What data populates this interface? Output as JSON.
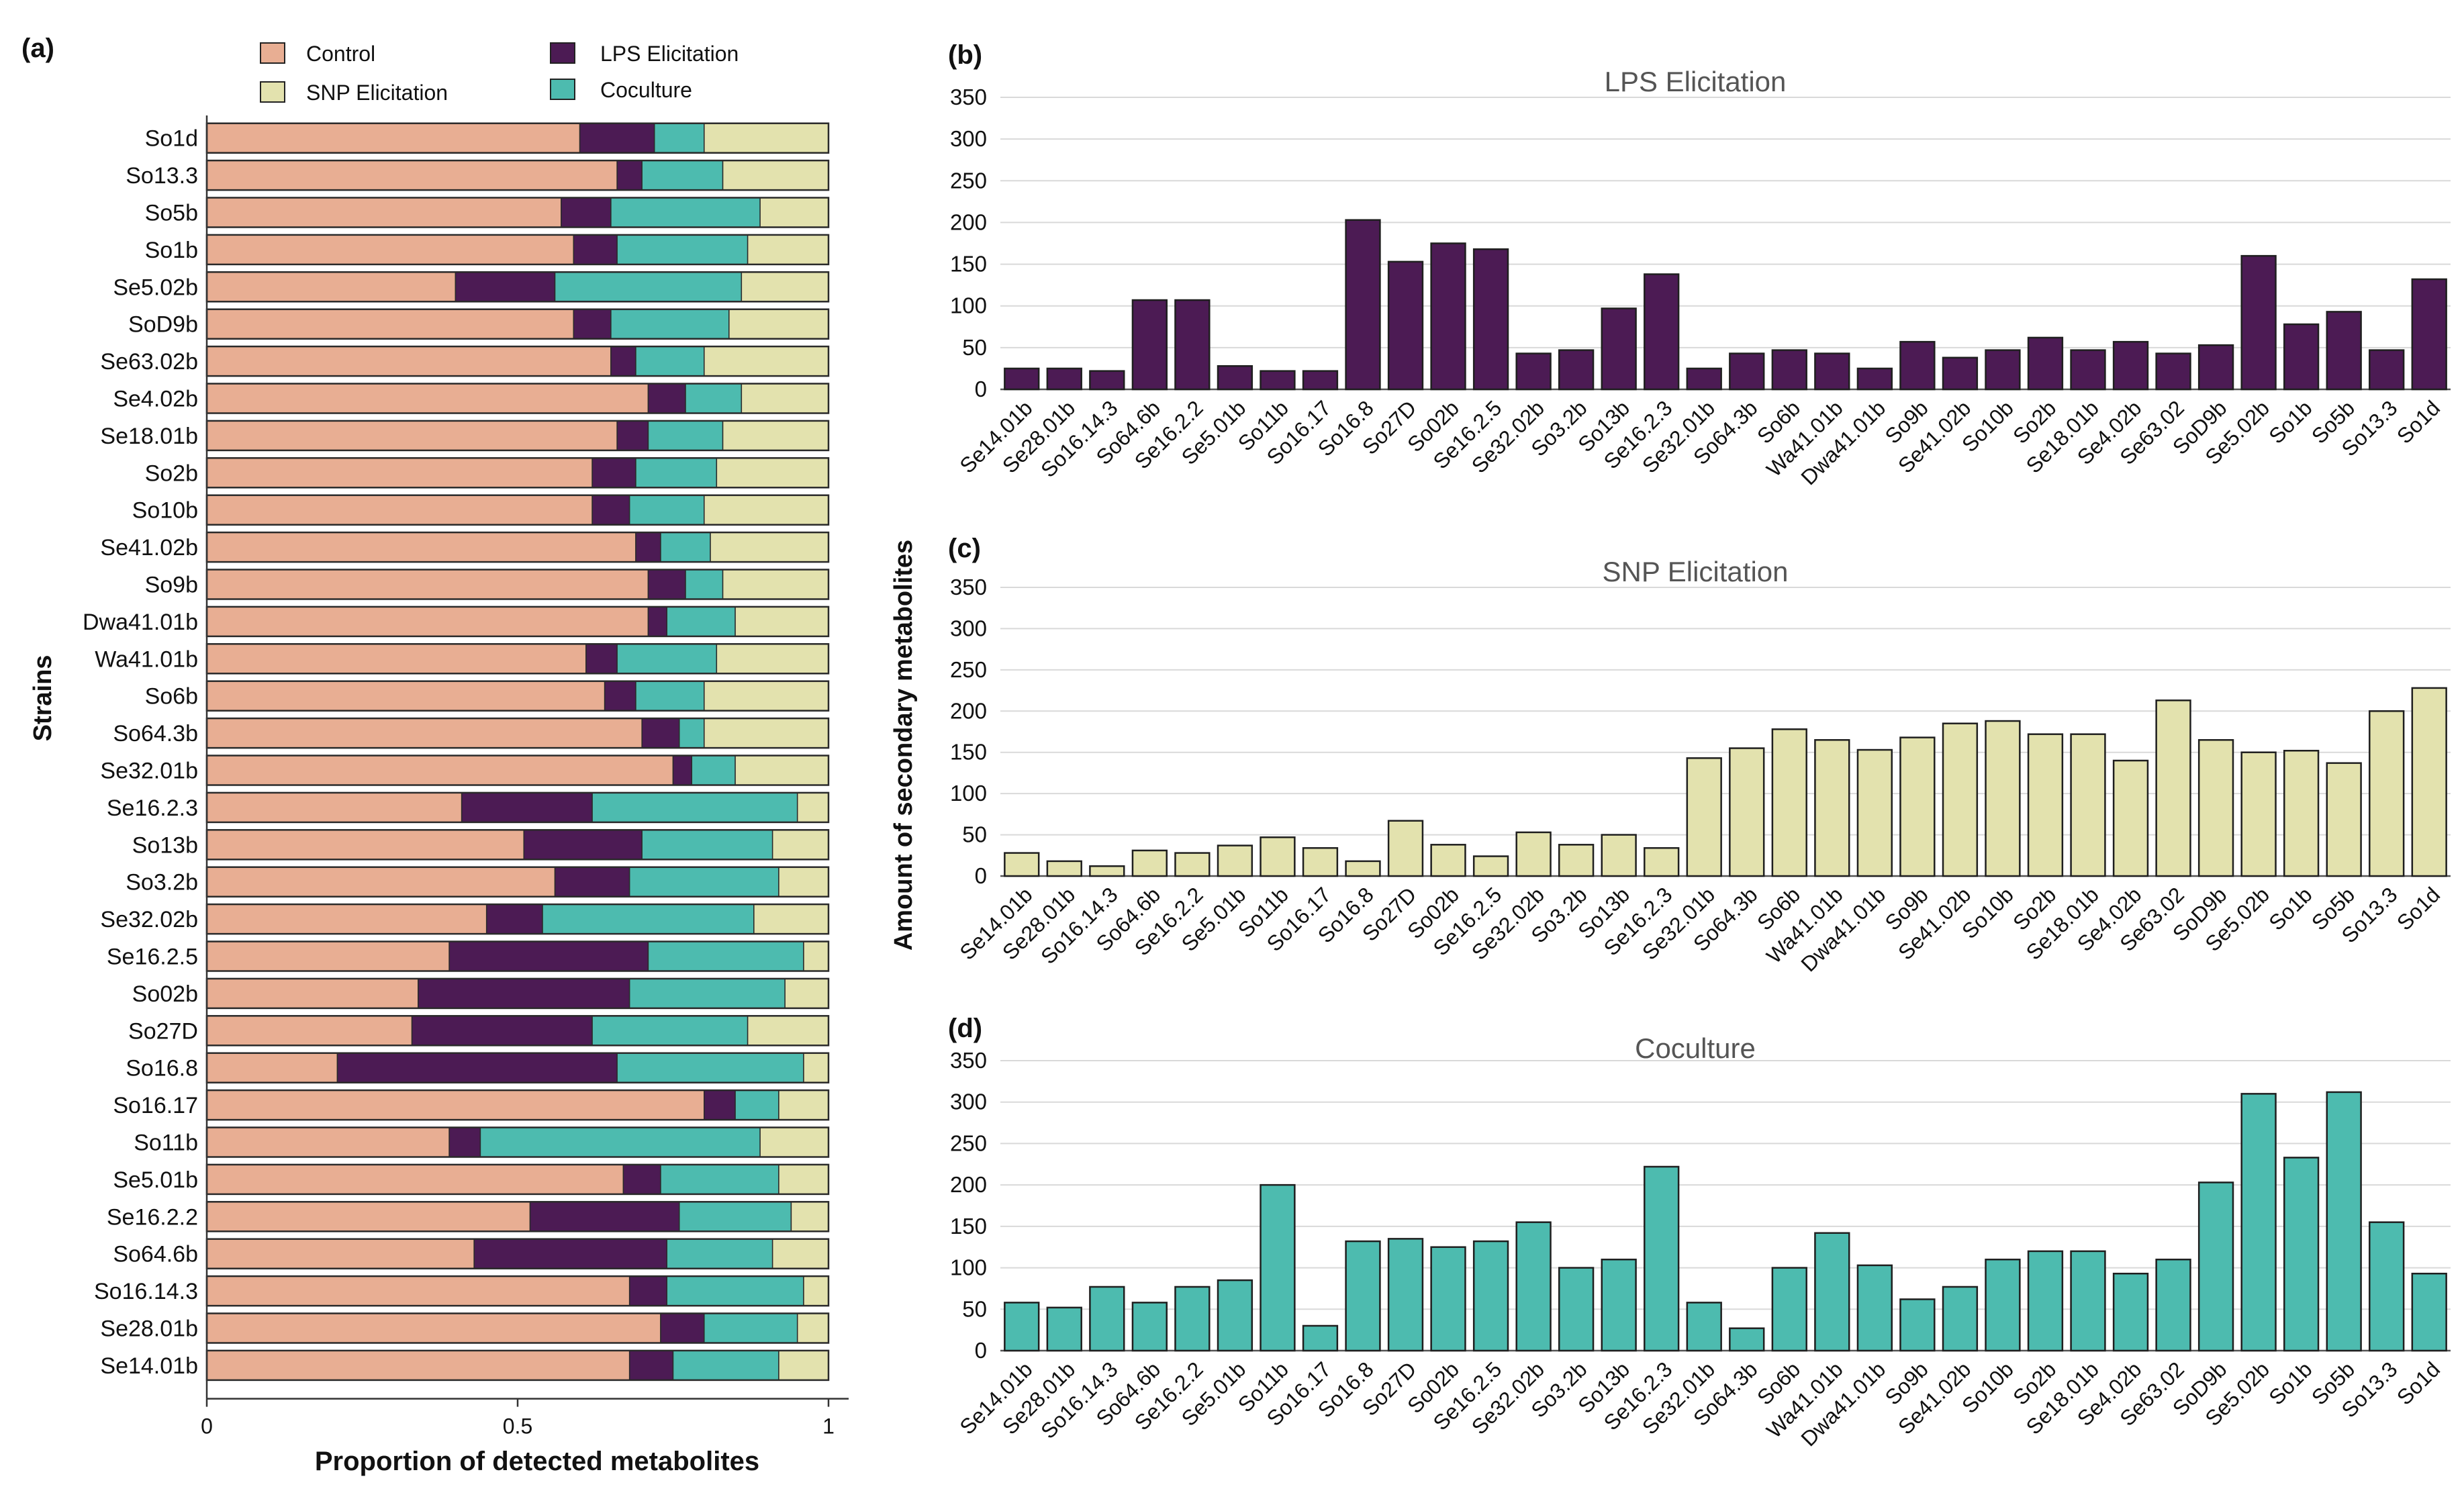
{
  "colors": {
    "control": "#E8AE93",
    "lps": "#4C1B54",
    "snp": "#E3E2AE",
    "coculture": "#4DBBAF",
    "grid": "#d9d9d9",
    "axis": "#7f7f7f",
    "text": "#111111",
    "title": "#555555"
  },
  "labels": {
    "panel_a": "(a)",
    "panel_b": "(b)",
    "panel_c": "(c)",
    "panel_d": "(d)",
    "shared_ylabel": "Amount of secondary metabolites"
  },
  "legend": [
    {
      "name": "Control",
      "color_key": "control"
    },
    {
      "name": "LPS Elicitation",
      "color_key": "lps"
    },
    {
      "name": "SNP Elicitation",
      "color_key": "snp"
    },
    {
      "name": "Coculture",
      "color_key": "coculture"
    }
  ],
  "chart_data": [
    {
      "id": "a",
      "type": "bar",
      "orientation": "horizontal",
      "stacked": true,
      "xlabel": "Proportion of detected metabolites",
      "ylabel": "Strains",
      "xlim": [
        0,
        1
      ],
      "xticks": [
        "0",
        "0.5",
        "1"
      ],
      "categories": [
        "So1d",
        "So13.3",
        "So5b",
        "So1b",
        "Se5.02b",
        "SoD9b",
        "Se63.02b",
        "Se4.02b",
        "Se18.01b",
        "So2b",
        "So10b",
        "Se41.02b",
        "So9b",
        "Dwa41.01b",
        "Wa41.01b",
        "So6b",
        "So64.3b",
        "Se32.01b",
        "Se16.2.3",
        "So13b",
        "So3.2b",
        "Se32.02b",
        "Se16.2.5",
        "So02b",
        "So27D",
        "So16.8",
        "So16.17",
        "So11b",
        "Se5.01b",
        "Se16.2.2",
        "So64.6b",
        "So16.14.3",
        "Se28.01b",
        "Se14.01b"
      ],
      "series": [
        {
          "name": "Control",
          "color_key": "control",
          "values": [
            0.6,
            0.66,
            0.57,
            0.59,
            0.4,
            0.59,
            0.65,
            0.71,
            0.66,
            0.62,
            0.62,
            0.69,
            0.71,
            0.71,
            0.61,
            0.64,
            0.7,
            0.75,
            0.41,
            0.51,
            0.56,
            0.45,
            0.39,
            0.34,
            0.33,
            0.21,
            0.8,
            0.39,
            0.67,
            0.52,
            0.43,
            0.68,
            0.73,
            0.68
          ]
        },
        {
          "name": "LPS Elicitation",
          "color_key": "lps",
          "values": [
            0.12,
            0.04,
            0.08,
            0.07,
            0.16,
            0.06,
            0.04,
            0.06,
            0.05,
            0.07,
            0.06,
            0.04,
            0.06,
            0.03,
            0.05,
            0.05,
            0.06,
            0.03,
            0.21,
            0.19,
            0.12,
            0.09,
            0.32,
            0.34,
            0.29,
            0.45,
            0.05,
            0.05,
            0.06,
            0.24,
            0.31,
            0.06,
            0.07,
            0.07
          ]
        },
        {
          "name": "Coculture",
          "color_key": "coculture",
          "values": [
            0.08,
            0.13,
            0.24,
            0.21,
            0.3,
            0.19,
            0.11,
            0.09,
            0.12,
            0.13,
            0.12,
            0.08,
            0.06,
            0.11,
            0.16,
            0.11,
            0.04,
            0.07,
            0.33,
            0.21,
            0.24,
            0.34,
            0.25,
            0.25,
            0.25,
            0.3,
            0.07,
            0.45,
            0.19,
            0.18,
            0.17,
            0.22,
            0.15,
            0.17
          ]
        },
        {
          "name": "SNP Elicitation",
          "color_key": "snp",
          "values": [
            0.2,
            0.17,
            0.11,
            0.13,
            0.14,
            0.16,
            0.2,
            0.14,
            0.17,
            0.18,
            0.2,
            0.19,
            0.17,
            0.15,
            0.18,
            0.2,
            0.2,
            0.15,
            0.05,
            0.09,
            0.08,
            0.12,
            0.04,
            0.07,
            0.13,
            0.04,
            0.08,
            0.11,
            0.08,
            0.06,
            0.09,
            0.04,
            0.05,
            0.08
          ]
        }
      ]
    },
    {
      "id": "b",
      "type": "bar",
      "title": "LPS Elicitation",
      "color_key": "lps",
      "ylim": [
        0,
        350
      ],
      "yticks": [
        0,
        50,
        100,
        150,
        200,
        250,
        300,
        350
      ],
      "categories": [
        "Se14.01b",
        "Se28.01b",
        "So16.14.3",
        "So64.6b",
        "Se16.2.2",
        "Se5.01b",
        "So11b",
        "So16.17",
        "So16.8",
        "So27D",
        "So02b",
        "Se16.2.5",
        "Se32.02b",
        "So3.2b",
        "So13b",
        "Se16.2.3",
        "Se32.01b",
        "So64.3b",
        "So6b",
        "Wa41.01b",
        "Dwa41.01b",
        "So9b",
        "Se41.02b",
        "So10b",
        "So2b",
        "Se18.01b",
        "Se4.02b",
        "Se63.02",
        "SoD9b",
        "Se5.02b",
        "So1b",
        "So5b",
        "So13.3",
        "So1d"
      ],
      "values": [
        25,
        25,
        22,
        107,
        107,
        28,
        22,
        22,
        203,
        153,
        175,
        168,
        43,
        47,
        97,
        138,
        25,
        43,
        47,
        43,
        25,
        57,
        38,
        47,
        62,
        47,
        57,
        43,
        53,
        160,
        78,
        93,
        47,
        132
      ]
    },
    {
      "id": "c",
      "type": "bar",
      "title": "SNP Elicitation",
      "color_key": "snp",
      "ylim": [
        0,
        350
      ],
      "yticks": [
        0,
        50,
        100,
        150,
        200,
        250,
        300,
        350
      ],
      "categories": [
        "Se14.01b",
        "Se28.01b",
        "So16.14.3",
        "So64.6b",
        "Se16.2.2",
        "Se5.01b",
        "So11b",
        "So16.17",
        "So16.8",
        "So27D",
        "So02b",
        "Se16.2.5",
        "Se32.02b",
        "So3.2b",
        "So13b",
        "Se16.2.3",
        "Se32.01b",
        "So64.3b",
        "So6b",
        "Wa41.01b",
        "Dwa41.01b",
        "So9b",
        "Se41.02b",
        "So10b",
        "So2b",
        "Se18.01b",
        "Se4.02b",
        "Se63.02",
        "SoD9b",
        "Se5.02b",
        "So1b",
        "So5b",
        "So13.3",
        "So1d"
      ],
      "values": [
        28,
        18,
        12,
        31,
        28,
        37,
        47,
        34,
        18,
        67,
        38,
        24,
        53,
        38,
        50,
        34,
        143,
        155,
        178,
        165,
        153,
        168,
        185,
        188,
        172,
        172,
        140,
        213,
        165,
        150,
        152,
        137,
        200,
        228
      ]
    },
    {
      "id": "d",
      "type": "bar",
      "title": "Coculture",
      "color_key": "coculture",
      "ylim": [
        0,
        350
      ],
      "yticks": [
        0,
        50,
        100,
        150,
        200,
        250,
        300,
        350
      ],
      "categories": [
        "Se14.01b",
        "Se28.01b",
        "So16.14.3",
        "So64.6b",
        "Se16.2.2",
        "Se5.01b",
        "So11b",
        "So16.17",
        "So16.8",
        "So27D",
        "So02b",
        "Se16.2.5",
        "Se32.02b",
        "So3.2b",
        "So13b",
        "Se16.2.3",
        "Se32.01b",
        "So64.3b",
        "So6b",
        "Wa41.01b",
        "Dwa41.01b",
        "So9b",
        "Se41.02b",
        "So10b",
        "So2b",
        "Se18.01b",
        "Se4.02b",
        "Se63.02",
        "SoD9b",
        "Se5.02b",
        "So1b",
        "So5b",
        "So13.3",
        "So1d"
      ],
      "values": [
        58,
        52,
        77,
        58,
        77,
        85,
        200,
        30,
        132,
        135,
        125,
        132,
        155,
        100,
        110,
        222,
        58,
        27,
        100,
        142,
        103,
        62,
        77,
        110,
        120,
        120,
        93,
        110,
        203,
        310,
        233,
        312,
        155,
        93
      ]
    }
  ]
}
